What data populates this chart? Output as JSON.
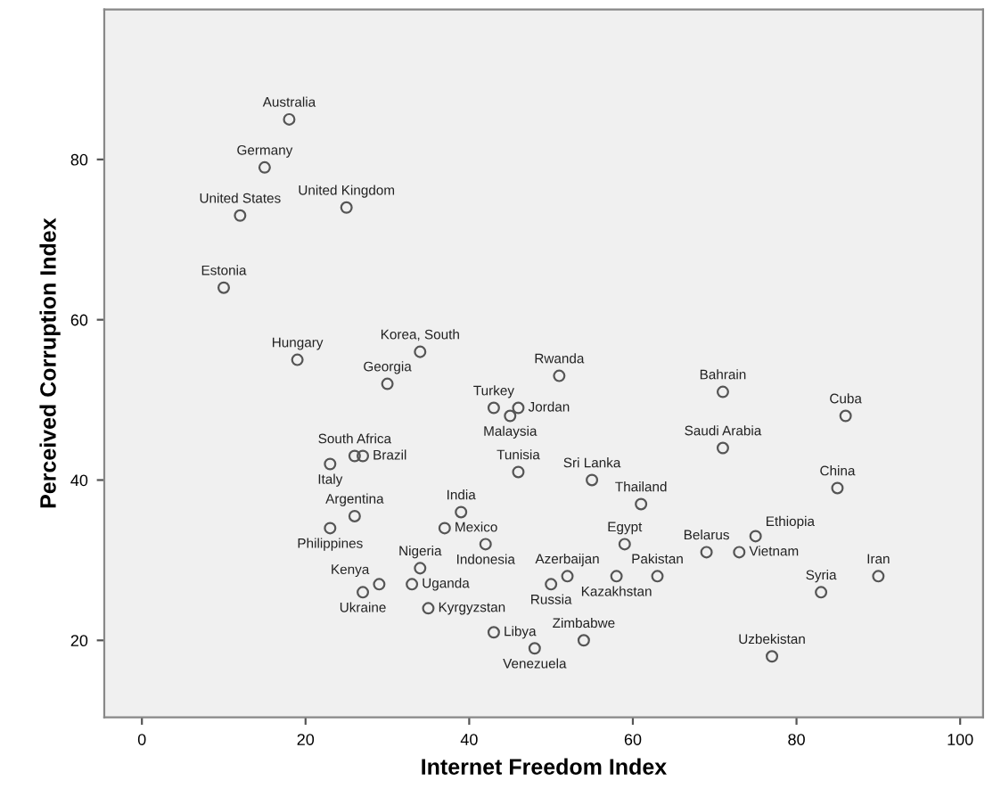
{
  "chart_data": {
    "type": "scatter",
    "xlabel": "Internet Freedom Index",
    "ylabel": "Perceived Corruption Index",
    "xlim": [
      -4.6,
      102.8
    ],
    "ylim": [
      10.4,
      98.7
    ],
    "xticks": [
      0,
      20,
      40,
      60,
      80,
      100
    ],
    "yticks": [
      20,
      40,
      60,
      80
    ],
    "grid": false,
    "marker": "circle",
    "series": [
      {
        "color": "#555555",
        "x": [
          18,
          15,
          12,
          25,
          10,
          19,
          34,
          30,
          43,
          46,
          45,
          51,
          26,
          27,
          23,
          46,
          55,
          61,
          39,
          26,
          23,
          37,
          42,
          34,
          29,
          27,
          33,
          35,
          43,
          48,
          54,
          50,
          52,
          58,
          59,
          63,
          69,
          73,
          75,
          71,
          71,
          86,
          85,
          83,
          90,
          77
        ],
        "values": [
          85,
          79,
          73,
          74,
          64,
          55,
          56,
          52,
          49,
          49,
          48,
          53,
          43,
          43,
          42,
          41,
          40,
          37,
          36,
          35.5,
          34,
          34,
          32,
          29,
          27,
          26,
          27,
          24,
          21,
          19,
          20,
          27,
          28,
          28,
          32,
          28,
          31,
          31,
          33,
          51,
          44,
          48,
          39,
          26,
          28,
          18
        ],
        "value_labels": [
          "Australia",
          "Germany",
          "United States",
          "United Kingdom",
          "Estonia",
          "Hungary",
          "Korea, South",
          "Georgia",
          "Turkey",
          "Jordan",
          "Malaysia",
          "Rwanda",
          "South Africa",
          "Brazil",
          "Italy",
          "Tunisia",
          "Sri Lanka",
          "Thailand",
          "India",
          "Argentina",
          "Philippines",
          "Mexico",
          "Indonesia",
          "Nigeria",
          "Kenya",
          "Ukraine",
          "Uganda",
          "Kyrgyzstan",
          "Libya",
          "Venezuela",
          "Zimbabwe",
          "Russia",
          "Azerbaijan",
          "Kazakhstan",
          "Egypt",
          "Pakistan",
          "Belarus",
          "Vietnam",
          "Ethiopia",
          "Bahrain",
          "Saudi Arabia",
          "Cuba",
          "China",
          "Syria",
          "Iran",
          "Uzbekistan"
        ]
      }
    ]
  }
}
